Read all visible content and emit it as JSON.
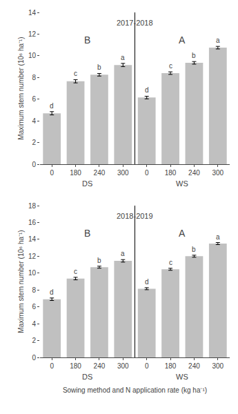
{
  "chart_data": [
    {
      "type": "bar",
      "title": "2017-2018",
      "categories": [
        "0",
        "180",
        "240",
        "300",
        "0",
        "180",
        "240",
        "300"
      ],
      "groups": [
        "DS",
        "DS",
        "DS",
        "DS",
        "WS",
        "WS",
        "WS",
        "WS"
      ],
      "group_labels": [
        "B",
        "A"
      ],
      "values": [
        4.7,
        7.65,
        8.25,
        9.15,
        6.15,
        8.4,
        9.35,
        10.75
      ],
      "errors": [
        0.15,
        0.15,
        0.12,
        0.15,
        0.12,
        0.12,
        0.12,
        0.12
      ],
      "labels": [
        "d",
        "c",
        "b",
        "a",
        "d",
        "c",
        "b",
        "a"
      ],
      "ylabel": "Maximum stem number (10⁶ ha⁻¹)",
      "ylim": [
        0,
        14
      ],
      "yticks": [
        0,
        2,
        4,
        6,
        8,
        10,
        12,
        14
      ],
      "color": "#c0c0c0",
      "grid": false
    },
    {
      "type": "bar",
      "title": "2018-2019",
      "categories": [
        "0",
        "180",
        "240",
        "300",
        "0",
        "180",
        "240",
        "300"
      ],
      "groups": [
        "DS",
        "DS",
        "DS",
        "DS",
        "WS",
        "WS",
        "WS",
        "WS"
      ],
      "group_labels": [
        "B",
        "A"
      ],
      "values": [
        6.9,
        9.35,
        10.7,
        11.45,
        8.15,
        10.45,
        12.0,
        13.5
      ],
      "errors": [
        0.15,
        0.15,
        0.12,
        0.15,
        0.12,
        0.12,
        0.12,
        0.12
      ],
      "labels": [
        "d",
        "c",
        "b",
        "a",
        "d",
        "c",
        "b",
        "a"
      ],
      "xlabel": "Sowing method and N application rate (kg ha⁻¹)",
      "ylabel": "Maximum stem number (10⁶ ha⁻¹)",
      "ylim": [
        0,
        18
      ],
      "yticks": [
        0,
        2,
        4,
        6,
        8,
        10,
        12,
        14,
        16,
        18
      ],
      "color": "#c0c0c0",
      "grid": false
    }
  ]
}
